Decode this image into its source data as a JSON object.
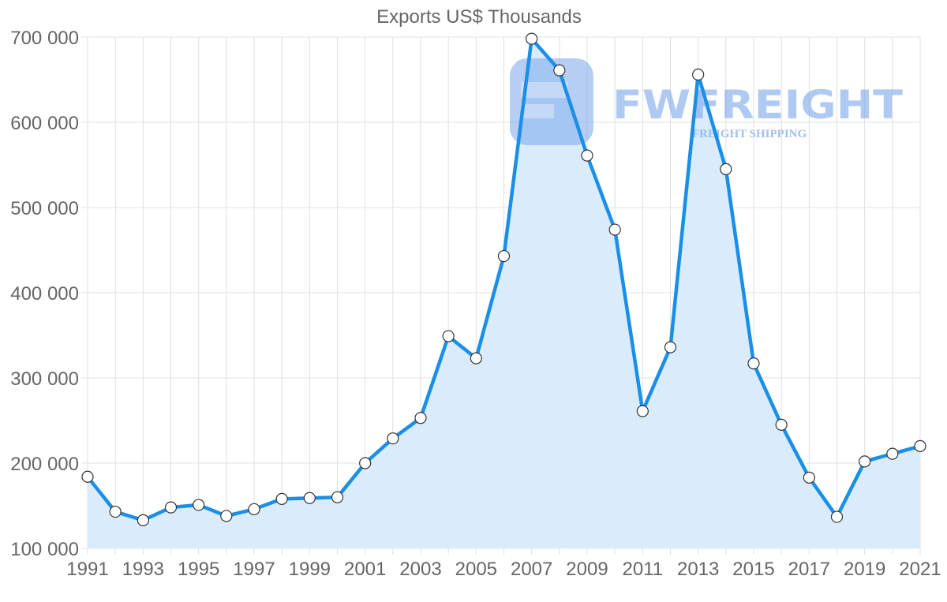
{
  "chart_data": {
    "type": "area",
    "title": "Exports US$ Thousands",
    "xlabel": "",
    "ylabel": "",
    "ylim": [
      100000,
      700000
    ],
    "yticks": [
      100000,
      200000,
      300000,
      400000,
      500000,
      600000,
      700000
    ],
    "ytick_labels": [
      "100 000",
      "200 000",
      "300 000",
      "400 000",
      "500 000",
      "600 000",
      "700 000"
    ],
    "xtick_labels": [
      "1991",
      "1993",
      "1995",
      "1997",
      "1999",
      "2001",
      "2003",
      "2005",
      "2007",
      "2009",
      "2011",
      "2013",
      "2015",
      "2017",
      "2019",
      "2021"
    ],
    "grid": true,
    "legend": null,
    "x": [
      1991,
      1992,
      1993,
      1994,
      1995,
      1996,
      1997,
      1998,
      1999,
      2000,
      2001,
      2002,
      2003,
      2004,
      2005,
      2006,
      2007,
      2008,
      2009,
      2010,
      2011,
      2012,
      2013,
      2014,
      2015,
      2016,
      2017,
      2018,
      2019,
      2020,
      2021
    ],
    "series": [
      {
        "name": "Exports US$ Thousands",
        "values": [
          184000,
          143000,
          133000,
          148000,
          151000,
          138000,
          146000,
          158000,
          159000,
          160000,
          200000,
          229000,
          253000,
          349000,
          323000,
          443000,
          698000,
          661000,
          561000,
          474000,
          261000,
          336000,
          656000,
          545000,
          317000,
          245000,
          183000,
          137000,
          202000,
          211000,
          220000
        ]
      }
    ],
    "colors": {
      "line": "#1a8fe8",
      "fill": "#d8ebfc",
      "point_fill": "#ffffff",
      "point_stroke": "#333333",
      "grid": "#e0e0e0",
      "text": "#666666"
    }
  },
  "watermark": {
    "brand": "FWFREIGHT",
    "tagline": "FREIGHT SHIPPING",
    "color": "#7aa6ea"
  }
}
